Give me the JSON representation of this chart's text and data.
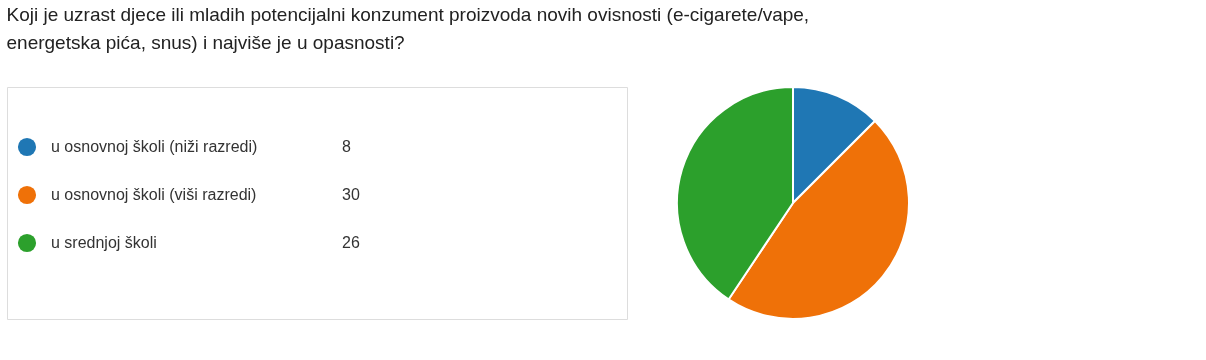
{
  "chart_data": {
    "type": "pie",
    "title": "Koji je uzrast djece ili mladih potencijalni konzument proizvoda novih ovisnosti (e-cigarete/vape, energetska pića, snus) i najviše je u opasnosti?",
    "categories": [
      "u osnovnoj školi (niži razredi)",
      "u osnovnoj školi (viši razredi)",
      "u srednjoj školi"
    ],
    "values": [
      8,
      30,
      26
    ],
    "colors": [
      "#1f77b4",
      "#ef7108",
      "#2ca02c"
    ],
    "legend": "left",
    "data_labels": true
  }
}
